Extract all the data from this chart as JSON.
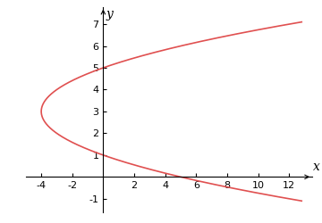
{
  "title": "",
  "xlabel": "x",
  "ylabel": "y",
  "curve_color": "#e05050",
  "line_width": 1.2,
  "y_param_min": -1.1,
  "y_param_max": 7.1,
  "xlim": [
    -5.0,
    13.5
  ],
  "ylim": [
    -1.6,
    7.8
  ],
  "x_ticks": [
    -4,
    -2,
    2,
    4,
    6,
    8,
    10,
    12
  ],
  "y_ticks": [
    -1,
    1,
    2,
    3,
    4,
    5,
    6,
    7
  ],
  "background_color": "#ffffff",
  "axis_color": "#000000",
  "tick_fontsize": 8,
  "label_fontsize": 10,
  "figsize": [
    3.6,
    2.5
  ],
  "dpi": 100
}
